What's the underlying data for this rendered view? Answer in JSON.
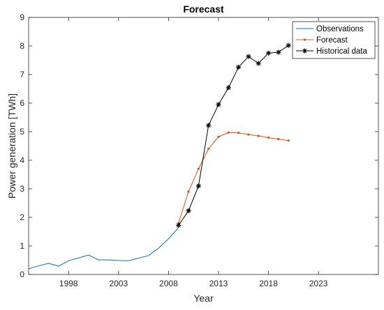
{
  "chart_data": {
    "type": "line",
    "title": "Forecast",
    "xlabel": "Year",
    "ylabel": "Power generation [TWh]",
    "xlim": [
      1994,
      2029
    ],
    "ylim": [
      0,
      9
    ],
    "xticks": [
      1998,
      2003,
      2008,
      2013,
      2018,
      2023
    ],
    "yticks": [
      0,
      1,
      2,
      3,
      4,
      5,
      6,
      7,
      8,
      9
    ],
    "grid": false,
    "legend_position": "top-right",
    "series": [
      {
        "name": "Observations",
        "color": "#0072BD",
        "marker": "none",
        "x": [
          1994,
          1995,
          1996,
          1997,
          1998,
          1999,
          2000,
          2001,
          2002,
          2003,
          2004,
          2005,
          2006,
          2007,
          2008,
          2009
        ],
        "y": [
          0.2,
          0.3,
          0.39,
          0.29,
          0.48,
          0.58,
          0.68,
          0.51,
          0.51,
          0.49,
          0.48,
          0.57,
          0.66,
          0.92,
          1.25,
          1.64
        ]
      },
      {
        "name": "Forecast",
        "color": "#D95319",
        "marker": "dot",
        "x": [
          2009,
          2010,
          2011,
          2012,
          2013,
          2014,
          2015,
          2016,
          2017,
          2018,
          2019,
          2020
        ],
        "y": [
          1.8,
          2.9,
          3.7,
          4.4,
          4.82,
          4.97,
          4.96,
          4.9,
          4.85,
          4.79,
          4.74,
          4.69
        ]
      },
      {
        "name": "Historical data",
        "color": "#000000",
        "marker": "asterisk",
        "x": [
          2009,
          2010,
          2011,
          2012,
          2013,
          2014,
          2015,
          2016,
          2017,
          2018,
          2019,
          2020
        ],
        "y": [
          1.72,
          2.23,
          3.1,
          5.22,
          5.95,
          6.54,
          7.26,
          7.63,
          7.39,
          7.75,
          7.78,
          8.02
        ]
      }
    ]
  }
}
